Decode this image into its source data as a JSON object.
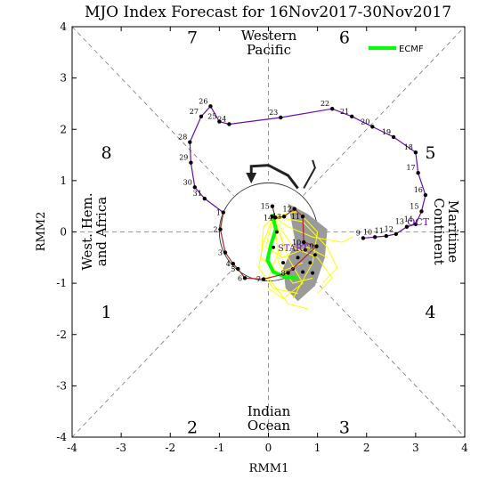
{
  "chart_data": {
    "type": "scatter",
    "title": "MJO Index Forecast for 16Nov2017-30Nov2017",
    "xlabel": "RMM1",
    "ylabel": "RMM2",
    "xlim": [
      -4,
      4
    ],
    "ylim": [
      -4,
      4
    ],
    "x_ticks": [
      "-4",
      "-3",
      "-2",
      "-1",
      "0",
      "1",
      "2",
      "3",
      "4"
    ],
    "y_ticks": [
      "-4",
      "-3",
      "-2",
      "-1",
      "0",
      "1",
      "2",
      "3",
      "4"
    ],
    "phases": [
      "1",
      "2",
      "3",
      "4",
      "5",
      "6",
      "7",
      "8"
    ],
    "regions": {
      "western_pacific": [
        "Western",
        "Pacific"
      ],
      "maritime_continent": [
        "Maritime",
        "Continent"
      ],
      "indian_ocean": [
        "Indian",
        "Ocean"
      ],
      "west_hem_africa": [
        "West. Hem.",
        "and Africa"
      ]
    },
    "legend": {
      "label": "ECMF",
      "color": "#00ff00",
      "position": "top-right"
    },
    "oct_label": "OCT",
    "start_label": "START",
    "observed_october": {
      "color": "#6a0dad",
      "points": [
        {
          "d": "9",
          "x": 1.93,
          "y": -0.12
        },
        {
          "d": "10",
          "x": 2.17,
          "y": -0.1
        },
        {
          "d": "11",
          "x": 2.4,
          "y": -0.08
        },
        {
          "d": "12",
          "x": 2.6,
          "y": -0.04
        },
        {
          "d": "13",
          "x": 2.82,
          "y": 0.1
        },
        {
          "d": "14",
          "x": 3.0,
          "y": 0.15
        },
        {
          "d": "15",
          "x": 3.12,
          "y": 0.4
        },
        {
          "d": "16",
          "x": 3.2,
          "y": 0.72
        },
        {
          "d": "17",
          "x": 3.05,
          "y": 1.15
        },
        {
          "d": "18",
          "x": 3.0,
          "y": 1.55
        },
        {
          "d": "19",
          "x": 2.55,
          "y": 1.85
        },
        {
          "d": "20",
          "x": 2.12,
          "y": 2.05
        },
        {
          "d": "21",
          "x": 1.7,
          "y": 2.25
        },
        {
          "d": "22",
          "x": 1.3,
          "y": 2.4
        },
        {
          "d": "23",
          "x": 0.25,
          "y": 2.23
        },
        {
          "d": "24",
          "x": -0.8,
          "y": 2.1
        },
        {
          "d": "25",
          "x": -1.0,
          "y": 2.15
        },
        {
          "d": "26",
          "x": -1.18,
          "y": 2.45
        },
        {
          "d": "27",
          "x": -1.37,
          "y": 2.25
        },
        {
          "d": "28",
          "x": -1.6,
          "y": 1.75
        },
        {
          "d": "29",
          "x": -1.58,
          "y": 1.35
        },
        {
          "d": "30",
          "x": -1.5,
          "y": 0.87
        },
        {
          "d": "31",
          "x": -1.3,
          "y": 0.65
        }
      ]
    },
    "observed_november": {
      "color": "#a52a2a",
      "points": [
        {
          "d": "1",
          "x": -0.92,
          "y": 0.38
        },
        {
          "d": "2",
          "x": -0.98,
          "y": 0.05
        },
        {
          "d": "3",
          "x": -0.88,
          "y": -0.4
        },
        {
          "d": "4",
          "x": -0.72,
          "y": -0.62
        },
        {
          "d": "5",
          "x": -0.62,
          "y": -0.72
        },
        {
          "d": "6",
          "x": -0.48,
          "y": -0.9
        },
        {
          "d": "7",
          "x": -0.1,
          "y": -0.92
        },
        {
          "d": "8",
          "x": 0.4,
          "y": -0.8
        },
        {
          "d": "9",
          "x": 0.98,
          "y": -0.28
        },
        {
          "d": "10",
          "x": 0.72,
          "y": -0.2
        },
        {
          "d": "11",
          "x": 0.7,
          "y": 0.3
        },
        {
          "d": "12",
          "x": 0.53,
          "y": 0.45
        },
        {
          "d": "13",
          "x": 0.32,
          "y": 0.3
        },
        {
          "d": "14",
          "x": 0.14,
          "y": 0.28
        },
        {
          "d": "15",
          "x": 0.08,
          "y": 0.5
        }
      ]
    },
    "ensemble_mean": {
      "name": "ECMF",
      "color": "#00ff00",
      "points": [
        [
          0.08,
          0.35
        ],
        [
          0.15,
          0.05
        ],
        [
          0.05,
          -0.25
        ],
        [
          -0.02,
          -0.55
        ],
        [
          0.1,
          -0.78
        ],
        [
          0.35,
          -0.88
        ],
        [
          0.6,
          -0.9
        ]
      ]
    },
    "black_marker_track": [
      [
        0.08,
        0.3
      ],
      [
        0.17,
        0.0
      ],
      [
        0.1,
        -0.3
      ],
      [
        0.3,
        -0.6
      ],
      [
        0.5,
        -0.72
      ],
      [
        0.7,
        -0.78
      ],
      [
        0.85,
        -0.6
      ],
      [
        0.95,
        -0.45
      ],
      [
        0.75,
        -0.35
      ],
      [
        0.6,
        -0.5
      ],
      [
        0.9,
        -0.8
      ]
    ],
    "hand_drawn_arrow": {
      "color": "#222222",
      "path": [
        [
          0.6,
          0.85
        ],
        [
          0.4,
          1.1
        ],
        [
          0.0,
          1.3
        ],
        [
          -0.35,
          1.28
        ],
        [
          -0.35,
          1.05
        ]
      ],
      "tail": [
        [
          0.72,
          0.85
        ],
        [
          0.95,
          1.25
        ],
        [
          0.9,
          1.4
        ]
      ]
    },
    "grid": false
  }
}
